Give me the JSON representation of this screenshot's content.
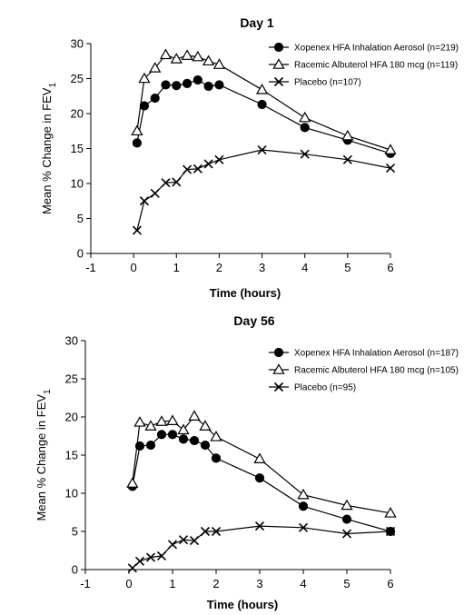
{
  "chart_data": [
    {
      "type": "line",
      "title": "Day 1",
      "xlabel": "Time (hours)",
      "ylabel": "Mean % Change in FEV",
      "ylabel_sub": "1",
      "xlim": [
        -1,
        6
      ],
      "ylim": [
        0,
        30
      ],
      "x_ticks": [
        -1,
        0,
        1,
        2,
        3,
        4,
        5,
        6
      ],
      "y_ticks": [
        0,
        5,
        10,
        15,
        20,
        25,
        30
      ],
      "grid": false,
      "legend_position": "top-right",
      "series": [
        {
          "name": "Xopenex HFA Inhalation Aerosol (n=219)",
          "marker": "filled-circle",
          "x": [
            0.08,
            0.25,
            0.5,
            0.75,
            1.0,
            1.25,
            1.5,
            1.75,
            2.0,
            3.0,
            4.0,
            5.0,
            6.0
          ],
          "y": [
            15.8,
            21.1,
            22.2,
            24.1,
            24.0,
            24.3,
            24.8,
            23.9,
            24.1,
            21.3,
            18.0,
            16.2,
            14.3
          ]
        },
        {
          "name": "Racemic Albuterol HFA 180 mcg (n=119)",
          "marker": "open-triangle",
          "x": [
            0.08,
            0.25,
            0.5,
            0.75,
            1.0,
            1.25,
            1.5,
            1.75,
            2.0,
            3.0,
            4.0,
            5.0,
            6.0
          ],
          "y": [
            17.5,
            25.0,
            26.5,
            28.4,
            27.8,
            28.3,
            28.1,
            27.5,
            27.0,
            23.4,
            19.4,
            16.8,
            14.8
          ]
        },
        {
          "name": "Placebo (n=107)",
          "marker": "x",
          "x": [
            0.08,
            0.25,
            0.5,
            0.75,
            1.0,
            1.25,
            1.5,
            1.75,
            2.0,
            3.0,
            4.0,
            5.0,
            6.0
          ],
          "y": [
            3.3,
            7.5,
            8.6,
            10.1,
            10.2,
            12.0,
            12.1,
            12.8,
            13.4,
            14.8,
            14.2,
            13.4,
            12.2
          ]
        }
      ]
    },
    {
      "type": "line",
      "title": "Day 56",
      "xlabel": "Time (hours)",
      "ylabel": "Mean % Change in FEV",
      "ylabel_sub": "1",
      "xlim": [
        -1,
        6
      ],
      "ylim": [
        0,
        30
      ],
      "x_ticks": [
        -1,
        0,
        1,
        2,
        3,
        4,
        5,
        6
      ],
      "y_ticks": [
        0,
        5,
        10,
        15,
        20,
        25,
        30
      ],
      "grid": false,
      "legend_position": "top-right",
      "series": [
        {
          "name": "Xopenex HFA Inhalation Aerosol (n=187)",
          "marker": "filled-circle",
          "x": [
            0.08,
            0.25,
            0.5,
            0.75,
            1.0,
            1.25,
            1.5,
            1.75,
            2.0,
            3.0,
            4.0,
            5.0,
            6.0
          ],
          "y": [
            10.9,
            16.2,
            16.3,
            17.7,
            17.7,
            17.1,
            16.9,
            16.3,
            14.6,
            12.0,
            8.3,
            6.6,
            5.0
          ]
        },
        {
          "name": "Racemic Albuterol HFA 180 mcg (n=105)",
          "marker": "open-triangle",
          "x": [
            0.08,
            0.25,
            0.5,
            0.75,
            1.0,
            1.25,
            1.5,
            1.75,
            2.0,
            3.0,
            4.0,
            5.0,
            6.0
          ],
          "y": [
            11.3,
            19.3,
            18.8,
            19.4,
            19.5,
            18.3,
            20.1,
            18.8,
            17.4,
            14.5,
            9.8,
            8.4,
            7.4
          ]
        },
        {
          "name": "Placebo (n=95)",
          "marker": "x",
          "x": [
            0.08,
            0.25,
            0.5,
            0.75,
            1.0,
            1.25,
            1.5,
            1.75,
            2.0,
            3.0,
            4.0,
            5.0,
            6.0
          ],
          "y": [
            0.2,
            1.1,
            1.6,
            1.8,
            3.3,
            3.9,
            3.8,
            5.0,
            5.0,
            5.7,
            5.5,
            4.7,
            5.0
          ]
        }
      ]
    }
  ]
}
